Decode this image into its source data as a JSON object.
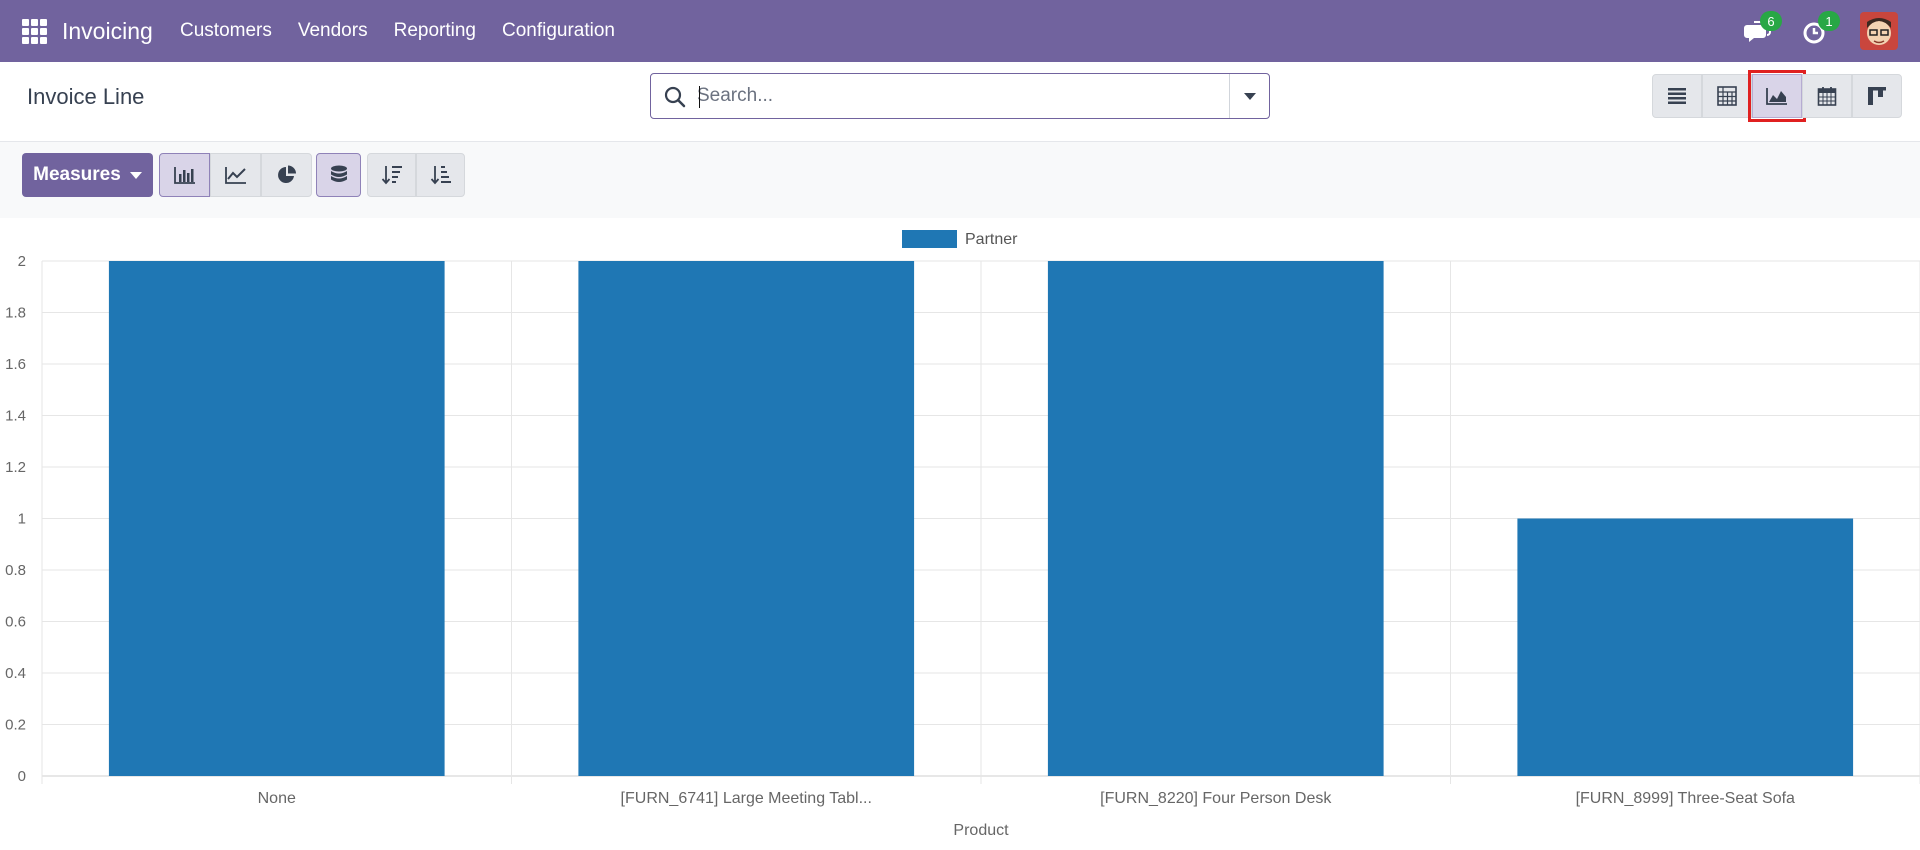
{
  "navbar": {
    "app_title": "Invoicing",
    "menu": [
      {
        "label": "Customers"
      },
      {
        "label": "Vendors"
      },
      {
        "label": "Reporting"
      },
      {
        "label": "Configuration"
      }
    ],
    "messages_count": "6",
    "activities_count": "1",
    "icons": [
      "apps-grid-icon",
      "chat-icon",
      "clock-icon",
      "user-avatar"
    ]
  },
  "control_panel": {
    "breadcrumb": "Invoice Line",
    "search_placeholder": "Search...",
    "views": [
      {
        "name": "list",
        "icon": "list-view-icon"
      },
      {
        "name": "pivot",
        "icon": "pivot-view-icon"
      },
      {
        "name": "graph",
        "icon": "graph-view-icon",
        "active": true
      },
      {
        "name": "calendar",
        "icon": "calendar-view-icon"
      },
      {
        "name": "kanban",
        "icon": "kanban-view-icon"
      }
    ]
  },
  "toolbar": {
    "measures_label": "Measures",
    "chart_modes": [
      "bar-chart-icon",
      "line-chart-icon",
      "pie-chart-icon"
    ],
    "active_mode": "bar",
    "stacked": true,
    "sort_icons": [
      "sort-descending-icon",
      "sort-ascending-icon"
    ]
  },
  "colors": {
    "navbar": "#71639e",
    "bar": "#1f77b4",
    "highlight_box": "#e02020",
    "badge": "#28a745"
  },
  "chart_data": {
    "type": "bar",
    "categories": [
      "None",
      "[FURN_6741] Large Meeting Tabl...",
      "[FURN_8220] Four Person Desk",
      "[FURN_8999] Three-Seat Sofa"
    ],
    "series": [
      {
        "name": "Partner",
        "values": [
          2,
          2,
          2,
          1
        ]
      }
    ],
    "title": "",
    "xlabel": "Product",
    "ylabel": "",
    "ylim": [
      0,
      2
    ],
    "yticks": [
      "0",
      "0.2",
      "0.4",
      "0.6",
      "0.8",
      "1",
      "1.2",
      "1.4",
      "1.6",
      "1.8",
      "2"
    ],
    "grid": true,
    "legend": "top-center"
  }
}
